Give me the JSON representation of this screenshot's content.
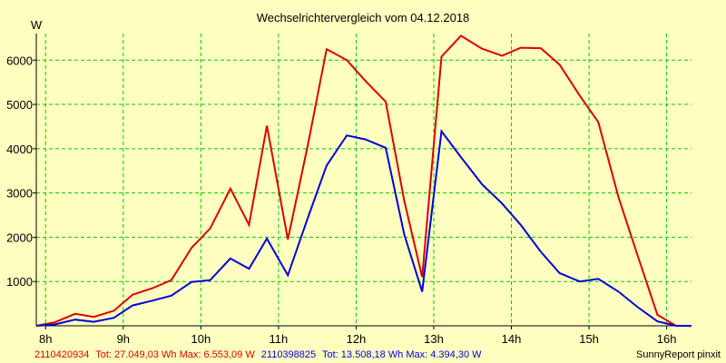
{
  "chart_data": {
    "type": "line",
    "title": "Wechselrichtervergleich vom 04.12.2018",
    "ylabel": "W",
    "xlabel": "",
    "xlim": [
      7.88,
      16.32
    ],
    "ylim": [
      0,
      6600
    ],
    "yticks": [
      1000,
      2000,
      3000,
      4000,
      5000,
      6000
    ],
    "xticks": [
      {
        "value": 8,
        "label": "8h"
      },
      {
        "value": 9,
        "label": "9h"
      },
      {
        "value": 10,
        "label": "10h"
      },
      {
        "value": 11,
        "label": "11h"
      },
      {
        "value": 12,
        "label": "12h"
      },
      {
        "value": 13,
        "label": "13h"
      },
      {
        "value": 14,
        "label": "14h"
      },
      {
        "value": 15,
        "label": "15h"
      },
      {
        "value": 16,
        "label": "16h"
      }
    ],
    "grid": true,
    "series": [
      {
        "name": "2110420934",
        "color": "#dd0000",
        "points": [
          [
            7.88,
            0
          ],
          [
            8.12,
            80
          ],
          [
            8.38,
            270
          ],
          [
            8.62,
            200
          ],
          [
            8.88,
            340
          ],
          [
            9.12,
            700
          ],
          [
            9.38,
            850
          ],
          [
            9.62,
            1030
          ],
          [
            9.88,
            1760
          ],
          [
            10.12,
            2200
          ],
          [
            10.38,
            3100
          ],
          [
            10.62,
            2280
          ],
          [
            10.85,
            4520
          ],
          [
            11.12,
            1950
          ],
          [
            11.38,
            4100
          ],
          [
            11.62,
            6250
          ],
          [
            11.88,
            6000
          ],
          [
            12.12,
            5530
          ],
          [
            12.38,
            5060
          ],
          [
            12.62,
            2820
          ],
          [
            12.85,
            1100
          ],
          [
            13.1,
            6080
          ],
          [
            13.35,
            6550
          ],
          [
            13.62,
            6260
          ],
          [
            13.88,
            6100
          ],
          [
            14.12,
            6280
          ],
          [
            14.38,
            6270
          ],
          [
            14.62,
            5900
          ],
          [
            14.88,
            5200
          ],
          [
            15.12,
            4600
          ],
          [
            15.38,
            2900
          ],
          [
            15.62,
            1620
          ],
          [
            15.88,
            250
          ],
          [
            16.12,
            0
          ],
          [
            16.32,
            0
          ]
        ]
      },
      {
        "name": "2110398825",
        "color": "#0000dd",
        "points": [
          [
            7.88,
            0
          ],
          [
            8.12,
            30
          ],
          [
            8.38,
            140
          ],
          [
            8.62,
            90
          ],
          [
            8.88,
            180
          ],
          [
            9.12,
            460
          ],
          [
            9.38,
            570
          ],
          [
            9.62,
            680
          ],
          [
            9.88,
            990
          ],
          [
            10.12,
            1030
          ],
          [
            10.38,
            1520
          ],
          [
            10.62,
            1290
          ],
          [
            10.85,
            1970
          ],
          [
            11.12,
            1140
          ],
          [
            11.38,
            2450
          ],
          [
            11.62,
            3620
          ],
          [
            11.88,
            4300
          ],
          [
            12.12,
            4210
          ],
          [
            12.38,
            4020
          ],
          [
            12.62,
            2060
          ],
          [
            12.85,
            770
          ],
          [
            13.1,
            4394
          ],
          [
            13.35,
            3810
          ],
          [
            13.62,
            3200
          ],
          [
            13.88,
            2760
          ],
          [
            14.12,
            2280
          ],
          [
            14.38,
            1670
          ],
          [
            14.62,
            1190
          ],
          [
            14.88,
            1000
          ],
          [
            15.12,
            1060
          ],
          [
            15.38,
            770
          ],
          [
            15.62,
            430
          ],
          [
            15.88,
            100
          ],
          [
            16.12,
            0
          ],
          [
            16.32,
            0
          ]
        ]
      }
    ]
  },
  "legend": {
    "series1": {
      "name": "2110420934",
      "text": "Tot: 27.049,03 Wh Max: 6.553,09 W"
    },
    "series2": {
      "name": "2110398825",
      "text": "Tot: 13.508,18 Wh Max: 4.394,30 W"
    }
  },
  "footer": {
    "credit": "SunnyReport pinxit"
  },
  "colors": {
    "background": "#ffffc0",
    "plot_background": "#ffffc0",
    "grid": "#00cc00",
    "series1": "#dd0000",
    "series2": "#0000dd"
  }
}
